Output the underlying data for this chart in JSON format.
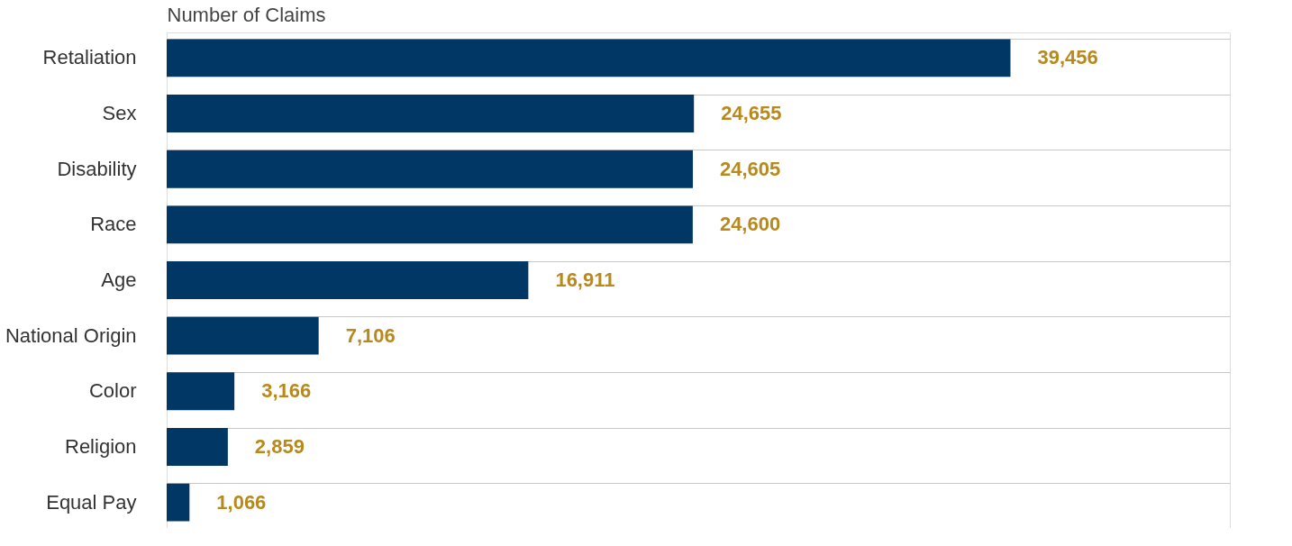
{
  "chart_data": {
    "type": "bar",
    "orientation": "horizontal",
    "xlabel": "Number of Claims",
    "categories": [
      "Retaliation",
      "Sex",
      "Disability",
      "Race",
      "Age",
      "National Origin",
      "Color",
      "Religion",
      "Equal Pay"
    ],
    "values": [
      39456,
      24655,
      24605,
      24600,
      16911,
      7106,
      3166,
      2859,
      1066
    ],
    "value_labels": [
      "39,456",
      "24,655",
      "24,605",
      "24,600",
      "16,911",
      "7,106",
      "3,166",
      "2,859",
      "1,066"
    ],
    "color": "#003764",
    "grid": "y",
    "tick_labels": "y"
  }
}
